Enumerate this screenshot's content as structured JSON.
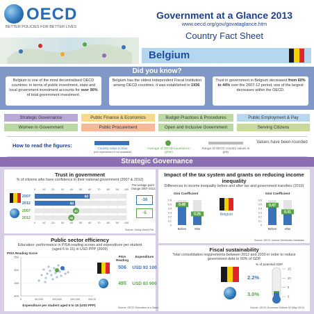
{
  "header": {
    "logo_text": "OECD",
    "logo_tagline": "BETTER POLICIES FOR BETTER LIVES",
    "title": "Government at a Glance 2013",
    "url": "www.oecd.org/gov/govataglance.htm",
    "subtitle": "Country Fact Sheet"
  },
  "country": {
    "name": "Belgium",
    "flag_colors": [
      "#1a1a1a",
      "#f5d000",
      "#e2232a"
    ]
  },
  "did_you_know": {
    "title": "Did you know?",
    "facts": [
      {
        "pre": "Belgium is one of the most decentralised OECD countries: in terms of public investment, state and local government investment accounts for ",
        "bold": "over 90%",
        "post": " of total government investment."
      },
      {
        "pre": "Belgium has the oldest Independent Fiscal Institution among OECD countries, it was established in ",
        "bold": "1936",
        "post": "."
      },
      {
        "pre": "Trust in government in Belgium decreased ",
        "bold": "from 60% to 44%",
        "post": " over the 2007-12 period, one of the largest decreases within the OECD."
      }
    ]
  },
  "topics": [
    {
      "label": "Strategic Governance",
      "color": "#b8a9d6"
    },
    {
      "label": "Public Finance & Economics",
      "color": "#f6d98a"
    },
    {
      "label": "Budget Practices & Procedures",
      "color": "#bcd9a5"
    },
    {
      "label": "Public Employment & Pay",
      "color": "#b7d7ee"
    },
    {
      "label": "Women in Government",
      "color": "#bcd9a5"
    },
    {
      "label": "Public Procurement",
      "color": "#f4b996"
    },
    {
      "label": "Open and Inclusive Government",
      "color": "#bcd9a5"
    },
    {
      "label": "Serving Citizens",
      "color": "#c9d99b"
    }
  ],
  "how_to_read": {
    "label": "How to read the figures:",
    "country_value": "Country value in blue",
    "country_value_note": "(not represented if not available)",
    "average": "Average of OECD countries in green",
    "range": "Range of OECD country values in grey",
    "rounded": "Values have been rounded"
  },
  "section": {
    "title": "Strategic Governance"
  },
  "trust": {
    "title": "Trust in government",
    "subtitle": "% of citizens who have confidence in their national government (2007 & 2012)",
    "change_label": "Percentage point change 2007-2012",
    "ticks": [
      "0",
      "10",
      "20",
      "30",
      "40",
      "50",
      "60",
      "70",
      "80",
      "90",
      "100"
    ],
    "rows": [
      {
        "year": "2007",
        "value": 60,
        "label": "60",
        "kind": "country"
      },
      {
        "year": "2012",
        "value": 44,
        "label": "44",
        "kind": "country"
      },
      {
        "year": "2007",
        "value": 45,
        "label": "45",
        "kind": "oecd"
      },
      {
        "year": "2012",
        "value": 40,
        "label": "40",
        "kind": "oecd"
      }
    ],
    "changes": [
      "-16",
      "-5"
    ],
    "source": "Source: Gallup World Poll"
  },
  "tax": {
    "title": "Impact of the tax system and grants on reducing income inequality",
    "subtitle": "Differences in income inequality before and after tax and government transfers (2010)",
    "left_title": "Gini Coefficient",
    "right_title": "Gini Coefficient",
    "left_values": [
      "0.48",
      "0.26"
    ],
    "right_values": [
      "0.47",
      "0.31"
    ],
    "bar_labels": [
      "Before",
      "After"
    ],
    "left_ticks": [
      "0.6",
      "0.5",
      "0.4",
      "0.3",
      "0.2",
      "0.1",
      "0"
    ],
    "right_ticks": [
      "0.6",
      "0.5",
      "0.4",
      "0.3",
      "0.2",
      "0.1",
      "0"
    ],
    "legend": "Belgium",
    "source": "Source: OECD Income Distribution Database"
  },
  "efficiency": {
    "title": "Public sector efficiency",
    "subtitle": "Education: performance in PISA reading scores and expenditure per student (aged 6 to 15) in USD PPP (2009)",
    "y_title": "PISA Reading Score",
    "y_ticks": [
      "550",
      "500",
      "450",
      "400"
    ],
    "x_ticks": [
      "0",
      "50,000",
      "100,000",
      "150,000",
      "200,000"
    ],
    "x_title": "Expenditure per student aged 6 to 15 (USD PPP)",
    "col_pisa": "PISA Reading",
    "col_exp": "Expenditure",
    "country_pisa": "506",
    "country_exp": "USD 93 100",
    "oecd_pisa": "495",
    "oecd_exp": "USD 83 900",
    "source": "Source: OECD Education at a Glance 2012"
  },
  "fiscal": {
    "title": "Fiscal sustainability",
    "subtitle": "Total consolidation requirements between 2012 and 2030 in order to reduce government debt to 60% of GDP",
    "axis_title": "% of potential GDP",
    "ticks": [
      "15",
      "10",
      "5",
      "0"
    ],
    "country_value": "2.2%",
    "oecd_value": "3.0%",
    "source": "Source: OECD Economic Outlook 92 (May 2012)"
  }
}
